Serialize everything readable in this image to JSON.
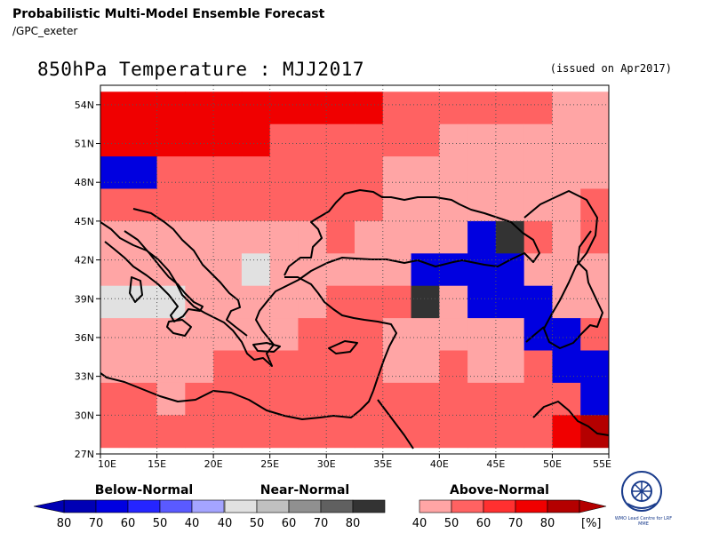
{
  "header": {
    "title": "Probabilistic Multi-Model Ensemble Forecast",
    "source": "/GPC_exeter"
  },
  "map": {
    "title": "850hPa Temperature : MJJ2017",
    "issued": "(issued on Apr2017)",
    "lat_labels": [
      "54N",
      "51N",
      "48N",
      "45N",
      "42N",
      "39N",
      "36N",
      "33N",
      "30N",
      "27N"
    ],
    "lon_labels": [
      "10E",
      "15E",
      "20E",
      "25E",
      "30E",
      "35E",
      "40E",
      "45E",
      "50E",
      "55E"
    ],
    "lon_range": [
      10,
      55
    ],
    "lat_range": [
      27,
      55.5
    ],
    "grid": true,
    "cell_deg": 2.5
  },
  "colors": {
    "above": [
      "#ffa5a5",
      "#ff6262",
      "#ff3030",
      "#f00000",
      "#b40000"
    ],
    "below": [
      "#a4a4ff",
      "#5a5aff",
      "#2525ff",
      "#0000e0",
      "#0000b4"
    ],
    "near": [
      "#e1e1e1",
      "#c0c0c0",
      "#909090",
      "#606060",
      "#333333"
    ]
  },
  "cells": [
    {
      "lon": 10,
      "lat": 52.5,
      "cat": "above",
      "lvl": 3
    },
    {
      "lon": 12.5,
      "lat": 52.5,
      "cat": "above",
      "lvl": 3
    },
    {
      "lon": 15,
      "lat": 52.5,
      "cat": "above",
      "lvl": 3
    },
    {
      "lon": 17.5,
      "lat": 52.5,
      "cat": "above",
      "lvl": 3
    },
    {
      "lon": 20,
      "lat": 52.5,
      "cat": "above",
      "lvl": 3
    },
    {
      "lon": 22.5,
      "lat": 52.5,
      "cat": "above",
      "lvl": 3
    },
    {
      "lon": 25,
      "lat": 52.5,
      "cat": "above",
      "lvl": 3
    },
    {
      "lon": 27.5,
      "lat": 52.5,
      "cat": "above",
      "lvl": 3
    },
    {
      "lon": 30,
      "lat": 52.5,
      "cat": "above",
      "lvl": 3
    },
    {
      "lon": 32.5,
      "lat": 52.5,
      "cat": "above",
      "lvl": 3
    },
    {
      "lon": 35,
      "lat": 52.5,
      "cat": "above",
      "lvl": 1
    },
    {
      "lon": 37.5,
      "lat": 52.5,
      "cat": "above",
      "lvl": 1
    },
    {
      "lon": 40,
      "lat": 52.5,
      "cat": "above",
      "lvl": 1
    },
    {
      "lon": 42.5,
      "lat": 52.5,
      "cat": "above",
      "lvl": 1
    },
    {
      "lon": 45,
      "lat": 52.5,
      "cat": "above",
      "lvl": 1
    },
    {
      "lon": 47.5,
      "lat": 52.5,
      "cat": "above",
      "lvl": 1
    },
    {
      "lon": 50,
      "lat": 52.5,
      "cat": "above",
      "lvl": 0
    },
    {
      "lon": 52.5,
      "lat": 52.5,
      "cat": "above",
      "lvl": 0
    },
    {
      "lon": 10,
      "lat": 50,
      "cat": "above",
      "lvl": 3
    },
    {
      "lon": 12.5,
      "lat": 50,
      "cat": "above",
      "lvl": 3
    },
    {
      "lon": 15,
      "lat": 50,
      "cat": "above",
      "lvl": 3
    },
    {
      "lon": 17.5,
      "lat": 50,
      "cat": "above",
      "lvl": 3
    },
    {
      "lon": 20,
      "lat": 50,
      "cat": "above",
      "lvl": 3
    },
    {
      "lon": 22.5,
      "lat": 50,
      "cat": "above",
      "lvl": 3
    },
    {
      "lon": 25,
      "lat": 50,
      "cat": "above",
      "lvl": 1
    },
    {
      "lon": 27.5,
      "lat": 50,
      "cat": "above",
      "lvl": 1
    },
    {
      "lon": 30,
      "lat": 50,
      "cat": "above",
      "lvl": 1
    },
    {
      "lon": 32.5,
      "lat": 50,
      "cat": "above",
      "lvl": 1
    },
    {
      "lon": 35,
      "lat": 50,
      "cat": "above",
      "lvl": 1
    },
    {
      "lon": 37.5,
      "lat": 50,
      "cat": "above",
      "lvl": 1
    },
    {
      "lon": 40,
      "lat": 50,
      "cat": "above",
      "lvl": 0
    },
    {
      "lon": 42.5,
      "lat": 50,
      "cat": "above",
      "lvl": 0
    },
    {
      "lon": 45,
      "lat": 50,
      "cat": "above",
      "lvl": 0
    },
    {
      "lon": 47.5,
      "lat": 50,
      "cat": "above",
      "lvl": 0
    },
    {
      "lon": 50,
      "lat": 50,
      "cat": "above",
      "lvl": 0
    },
    {
      "lon": 52.5,
      "lat": 50,
      "cat": "above",
      "lvl": 0
    },
    {
      "lon": 10,
      "lat": 47.5,
      "cat": "below",
      "lvl": 3
    },
    {
      "lon": 12.5,
      "lat": 47.5,
      "cat": "below",
      "lvl": 3
    },
    {
      "lon": 15,
      "lat": 47.5,
      "cat": "above",
      "lvl": 1
    },
    {
      "lon": 17.5,
      "lat": 47.5,
      "cat": "above",
      "lvl": 1
    },
    {
      "lon": 20,
      "lat": 47.5,
      "cat": "above",
      "lvl": 1
    },
    {
      "lon": 22.5,
      "lat": 47.5,
      "cat": "above",
      "lvl": 1
    },
    {
      "lon": 25,
      "lat": 47.5,
      "cat": "above",
      "lvl": 1
    },
    {
      "lon": 27.5,
      "lat": 47.5,
      "cat": "above",
      "lvl": 1
    },
    {
      "lon": 30,
      "lat": 47.5,
      "cat": "above",
      "lvl": 1
    },
    {
      "lon": 32.5,
      "lat": 47.5,
      "cat": "above",
      "lvl": 1
    },
    {
      "lon": 35,
      "lat": 47.5,
      "cat": "above",
      "lvl": 0
    },
    {
      "lon": 37.5,
      "lat": 47.5,
      "cat": "above",
      "lvl": 0
    },
    {
      "lon": 40,
      "lat": 47.5,
      "cat": "above",
      "lvl": 0
    },
    {
      "lon": 42.5,
      "lat": 47.5,
      "cat": "above",
      "lvl": 0
    },
    {
      "lon": 45,
      "lat": 47.5,
      "cat": "above",
      "lvl": 0
    },
    {
      "lon": 47.5,
      "lat": 47.5,
      "cat": "above",
      "lvl": 0
    },
    {
      "lon": 50,
      "lat": 47.5,
      "cat": "above",
      "lvl": 0
    },
    {
      "lon": 52.5,
      "lat": 47.5,
      "cat": "above",
      "lvl": 0
    },
    {
      "lon": 10,
      "lat": 45,
      "cat": "above",
      "lvl": 1
    },
    {
      "lon": 12.5,
      "lat": 45,
      "cat": "above",
      "lvl": 1
    },
    {
      "lon": 15,
      "lat": 45,
      "cat": "above",
      "lvl": 1
    },
    {
      "lon": 17.5,
      "lat": 45,
      "cat": "above",
      "lvl": 1
    },
    {
      "lon": 20,
      "lat": 45,
      "cat": "above",
      "lvl": 1
    },
    {
      "lon": 22.5,
      "lat": 45,
      "cat": "above",
      "lvl": 1
    },
    {
      "lon": 25,
      "lat": 45,
      "cat": "above",
      "lvl": 1
    },
    {
      "lon": 27.5,
      "lat": 45,
      "cat": "above",
      "lvl": 1
    },
    {
      "lon": 30,
      "lat": 45,
      "cat": "above",
      "lvl": 1
    },
    {
      "lon": 32.5,
      "lat": 45,
      "cat": "above",
      "lvl": 1
    },
    {
      "lon": 35,
      "lat": 45,
      "cat": "above",
      "lvl": 0
    },
    {
      "lon": 37.5,
      "lat": 45,
      "cat": "above",
      "lvl": 0
    },
    {
      "lon": 40,
      "lat": 45,
      "cat": "above",
      "lvl": 0
    },
    {
      "lon": 42.5,
      "lat": 45,
      "cat": "above",
      "lvl": 0
    },
    {
      "lon": 45,
      "lat": 45,
      "cat": "above",
      "lvl": 0
    },
    {
      "lon": 47.5,
      "lat": 45,
      "cat": "above",
      "lvl": 0
    },
    {
      "lon": 50,
      "lat": 45,
      "cat": "above",
      "lvl": 0
    },
    {
      "lon": 52.5,
      "lat": 45,
      "cat": "above",
      "lvl": 1
    },
    {
      "lon": 10,
      "lat": 42.5,
      "cat": "above",
      "lvl": 0
    },
    {
      "lon": 12.5,
      "lat": 42.5,
      "cat": "above",
      "lvl": 0
    },
    {
      "lon": 15,
      "lat": 42.5,
      "cat": "above",
      "lvl": 0
    },
    {
      "lon": 17.5,
      "lat": 42.5,
      "cat": "above",
      "lvl": 0
    },
    {
      "lon": 20,
      "lat": 42.5,
      "cat": "above",
      "lvl": 0
    },
    {
      "lon": 22.5,
      "lat": 42.5,
      "cat": "above",
      "lvl": 0
    },
    {
      "lon": 25,
      "lat": 42.5,
      "cat": "above",
      "lvl": 0
    },
    {
      "lon": 27.5,
      "lat": 42.5,
      "cat": "above",
      "lvl": 0
    },
    {
      "lon": 30,
      "lat": 42.5,
      "cat": "above",
      "lvl": 1
    },
    {
      "lon": 32.5,
      "lat": 42.5,
      "cat": "above",
      "lvl": 0
    },
    {
      "lon": 35,
      "lat": 42.5,
      "cat": "above",
      "lvl": 0
    },
    {
      "lon": 37.5,
      "lat": 42.5,
      "cat": "above",
      "lvl": 0
    },
    {
      "lon": 40,
      "lat": 42.5,
      "cat": "above",
      "lvl": 0
    },
    {
      "lon": 42.5,
      "lat": 42.5,
      "cat": "below",
      "lvl": 3
    },
    {
      "lon": 45,
      "lat": 42.5,
      "cat": "near",
      "lvl": 4
    },
    {
      "lon": 47.5,
      "lat": 42.5,
      "cat": "above",
      "lvl": 1
    },
    {
      "lon": 50,
      "lat": 42.5,
      "cat": "above",
      "lvl": 0
    },
    {
      "lon": 52.5,
      "lat": 42.5,
      "cat": "above",
      "lvl": 1
    },
    {
      "lon": 10,
      "lat": 40,
      "cat": "above",
      "lvl": 0
    },
    {
      "lon": 12.5,
      "lat": 40,
      "cat": "above",
      "lvl": 0
    },
    {
      "lon": 15,
      "lat": 40,
      "cat": "above",
      "lvl": 0
    },
    {
      "lon": 17.5,
      "lat": 40,
      "cat": "above",
      "lvl": 0
    },
    {
      "lon": 20,
      "lat": 40,
      "cat": "above",
      "lvl": 0
    },
    {
      "lon": 22.5,
      "lat": 40,
      "cat": "near",
      "lvl": 0
    },
    {
      "lon": 25,
      "lat": 40,
      "cat": "above",
      "lvl": 0
    },
    {
      "lon": 27.5,
      "lat": 40,
      "cat": "above",
      "lvl": 0
    },
    {
      "lon": 30,
      "lat": 40,
      "cat": "above",
      "lvl": 0
    },
    {
      "lon": 32.5,
      "lat": 40,
      "cat": "above",
      "lvl": 0
    },
    {
      "lon": 35,
      "lat": 40,
      "cat": "above",
      "lvl": 0
    },
    {
      "lon": 37.5,
      "lat": 40,
      "cat": "below",
      "lvl": 3
    },
    {
      "lon": 40,
      "lat": 40,
      "cat": "below",
      "lvl": 3
    },
    {
      "lon": 42.5,
      "lat": 40,
      "cat": "below",
      "lvl": 3
    },
    {
      "lon": 45,
      "lat": 40,
      "cat": "below",
      "lvl": 3
    },
    {
      "lon": 47.5,
      "lat": 40,
      "cat": "above",
      "lvl": 0
    },
    {
      "lon": 50,
      "lat": 40,
      "cat": "above",
      "lvl": 0
    },
    {
      "lon": 52.5,
      "lat": 40,
      "cat": "above",
      "lvl": 0
    },
    {
      "lon": 10,
      "lat": 37.5,
      "cat": "near",
      "lvl": 0
    },
    {
      "lon": 12.5,
      "lat": 37.5,
      "cat": "near",
      "lvl": 0
    },
    {
      "lon": 15,
      "lat": 37.5,
      "cat": "near",
      "lvl": 0
    },
    {
      "lon": 17.5,
      "lat": 37.5,
      "cat": "above",
      "lvl": 0
    },
    {
      "lon": 20,
      "lat": 37.5,
      "cat": "above",
      "lvl": 0
    },
    {
      "lon": 22.5,
      "lat": 37.5,
      "cat": "above",
      "lvl": 0
    },
    {
      "lon": 25,
      "lat": 37.5,
      "cat": "above",
      "lvl": 0
    },
    {
      "lon": 27.5,
      "lat": 37.5,
      "cat": "above",
      "lvl": 0
    },
    {
      "lon": 30,
      "lat": 37.5,
      "cat": "above",
      "lvl": 1
    },
    {
      "lon": 32.5,
      "lat": 37.5,
      "cat": "above",
      "lvl": 1
    },
    {
      "lon": 35,
      "lat": 37.5,
      "cat": "above",
      "lvl": 1
    },
    {
      "lon": 37.5,
      "lat": 37.5,
      "cat": "near",
      "lvl": 4
    },
    {
      "lon": 40,
      "lat": 37.5,
      "cat": "above",
      "lvl": 0
    },
    {
      "lon": 42.5,
      "lat": 37.5,
      "cat": "below",
      "lvl": 3
    },
    {
      "lon": 45,
      "lat": 37.5,
      "cat": "below",
      "lvl": 3
    },
    {
      "lon": 47.5,
      "lat": 37.5,
      "cat": "below",
      "lvl": 3
    },
    {
      "lon": 50,
      "lat": 37.5,
      "cat": "above",
      "lvl": 0
    },
    {
      "lon": 52.5,
      "lat": 37.5,
      "cat": "above",
      "lvl": 0
    },
    {
      "lon": 10,
      "lat": 35,
      "cat": "above",
      "lvl": 0
    },
    {
      "lon": 12.5,
      "lat": 35,
      "cat": "above",
      "lvl": 0
    },
    {
      "lon": 15,
      "lat": 35,
      "cat": "above",
      "lvl": 0
    },
    {
      "lon": 17.5,
      "lat": 35,
      "cat": "above",
      "lvl": 0
    },
    {
      "lon": 20,
      "lat": 35,
      "cat": "above",
      "lvl": 0
    },
    {
      "lon": 22.5,
      "lat": 35,
      "cat": "above",
      "lvl": 0
    },
    {
      "lon": 25,
      "lat": 35,
      "cat": "above",
      "lvl": 0
    },
    {
      "lon": 27.5,
      "lat": 35,
      "cat": "above",
      "lvl": 1
    },
    {
      "lon": 30,
      "lat": 35,
      "cat": "above",
      "lvl": 1
    },
    {
      "lon": 32.5,
      "lat": 35,
      "cat": "above",
      "lvl": 1
    },
    {
      "lon": 35,
      "lat": 35,
      "cat": "above",
      "lvl": 0
    },
    {
      "lon": 37.5,
      "lat": 35,
      "cat": "above",
      "lvl": 0
    },
    {
      "lon": 40,
      "lat": 35,
      "cat": "above",
      "lvl": 0
    },
    {
      "lon": 42.5,
      "lat": 35,
      "cat": "above",
      "lvl": 0
    },
    {
      "lon": 45,
      "lat": 35,
      "cat": "above",
      "lvl": 0
    },
    {
      "lon": 47.5,
      "lat": 35,
      "cat": "below",
      "lvl": 3
    },
    {
      "lon": 50,
      "lat": 35,
      "cat": "below",
      "lvl": 3
    },
    {
      "lon": 52.5,
      "lat": 35,
      "cat": "above",
      "lvl": 1
    },
    {
      "lon": 10,
      "lat": 32.5,
      "cat": "above",
      "lvl": 0
    },
    {
      "lon": 12.5,
      "lat": 32.5,
      "cat": "above",
      "lvl": 0
    },
    {
      "lon": 15,
      "lat": 32.5,
      "cat": "above",
      "lvl": 0
    },
    {
      "lon": 17.5,
      "lat": 32.5,
      "cat": "above",
      "lvl": 0
    },
    {
      "lon": 20,
      "lat": 32.5,
      "cat": "above",
      "lvl": 1
    },
    {
      "lon": 22.5,
      "lat": 32.5,
      "cat": "above",
      "lvl": 1
    },
    {
      "lon": 25,
      "lat": 32.5,
      "cat": "above",
      "lvl": 1
    },
    {
      "lon": 27.5,
      "lat": 32.5,
      "cat": "above",
      "lvl": 1
    },
    {
      "lon": 30,
      "lat": 32.5,
      "cat": "above",
      "lvl": 1
    },
    {
      "lon": 32.5,
      "lat": 32.5,
      "cat": "above",
      "lvl": 1
    },
    {
      "lon": 35,
      "lat": 32.5,
      "cat": "above",
      "lvl": 0
    },
    {
      "lon": 37.5,
      "lat": 32.5,
      "cat": "above",
      "lvl": 0
    },
    {
      "lon": 40,
      "lat": 32.5,
      "cat": "above",
      "lvl": 1
    },
    {
      "lon": 42.5,
      "lat": 32.5,
      "cat": "above",
      "lvl": 0
    },
    {
      "lon": 45,
      "lat": 32.5,
      "cat": "above",
      "lvl": 0
    },
    {
      "lon": 47.5,
      "lat": 32.5,
      "cat": "above",
      "lvl": 1
    },
    {
      "lon": 50,
      "lat": 32.5,
      "cat": "below",
      "lvl": 3
    },
    {
      "lon": 52.5,
      "lat": 32.5,
      "cat": "below",
      "lvl": 3
    },
    {
      "lon": 10,
      "lat": 30,
      "cat": "above",
      "lvl": 1
    },
    {
      "lon": 12.5,
      "lat": 30,
      "cat": "above",
      "lvl": 1
    },
    {
      "lon": 15,
      "lat": 30,
      "cat": "above",
      "lvl": 0
    },
    {
      "lon": 17.5,
      "lat": 30,
      "cat": "above",
      "lvl": 1
    },
    {
      "lon": 20,
      "lat": 30,
      "cat": "above",
      "lvl": 1
    },
    {
      "lon": 22.5,
      "lat": 30,
      "cat": "above",
      "lvl": 1
    },
    {
      "lon": 25,
      "lat": 30,
      "cat": "above",
      "lvl": 1
    },
    {
      "lon": 27.5,
      "lat": 30,
      "cat": "above",
      "lvl": 1
    },
    {
      "lon": 30,
      "lat": 30,
      "cat": "above",
      "lvl": 1
    },
    {
      "lon": 32.5,
      "lat": 30,
      "cat": "above",
      "lvl": 1
    },
    {
      "lon": 35,
      "lat": 30,
      "cat": "above",
      "lvl": 1
    },
    {
      "lon": 37.5,
      "lat": 30,
      "cat": "above",
      "lvl": 1
    },
    {
      "lon": 40,
      "lat": 30,
      "cat": "above",
      "lvl": 1
    },
    {
      "lon": 42.5,
      "lat": 30,
      "cat": "above",
      "lvl": 1
    },
    {
      "lon": 45,
      "lat": 30,
      "cat": "above",
      "lvl": 1
    },
    {
      "lon": 47.5,
      "lat": 30,
      "cat": "above",
      "lvl": 1
    },
    {
      "lon": 50,
      "lat": 30,
      "cat": "above",
      "lvl": 1
    },
    {
      "lon": 52.5,
      "lat": 30,
      "cat": "below",
      "lvl": 3
    },
    {
      "lon": 10,
      "lat": 27.5,
      "cat": "above",
      "lvl": 1
    },
    {
      "lon": 12.5,
      "lat": 27.5,
      "cat": "above",
      "lvl": 1
    },
    {
      "lon": 15,
      "lat": 27.5,
      "cat": "above",
      "lvl": 1
    },
    {
      "lon": 17.5,
      "lat": 27.5,
      "cat": "above",
      "lvl": 1
    },
    {
      "lon": 20,
      "lat": 27.5,
      "cat": "above",
      "lvl": 1
    },
    {
      "lon": 22.5,
      "lat": 27.5,
      "cat": "above",
      "lvl": 1
    },
    {
      "lon": 25,
      "lat": 27.5,
      "cat": "above",
      "lvl": 1
    },
    {
      "lon": 27.5,
      "lat": 27.5,
      "cat": "above",
      "lvl": 1
    },
    {
      "lon": 30,
      "lat": 27.5,
      "cat": "above",
      "lvl": 1
    },
    {
      "lon": 32.5,
      "lat": 27.5,
      "cat": "above",
      "lvl": 1
    },
    {
      "lon": 35,
      "lat": 27.5,
      "cat": "above",
      "lvl": 1
    },
    {
      "lon": 37.5,
      "lat": 27.5,
      "cat": "above",
      "lvl": 1
    },
    {
      "lon": 40,
      "lat": 27.5,
      "cat": "above",
      "lvl": 1
    },
    {
      "lon": 42.5,
      "lat": 27.5,
      "cat": "above",
      "lvl": 1
    },
    {
      "lon": 45,
      "lat": 27.5,
      "cat": "above",
      "lvl": 1
    },
    {
      "lon": 47.5,
      "lat": 27.5,
      "cat": "above",
      "lvl": 1
    },
    {
      "lon": 50,
      "lat": 27.5,
      "cat": "above",
      "lvl": 3
    },
    {
      "lon": 52.5,
      "lat": 27.5,
      "cat": "above",
      "lvl": 4
    }
  ],
  "legend": {
    "below": {
      "label": "Below-Normal",
      "ticks": [
        "80",
        "70",
        "60",
        "50",
        "40"
      ]
    },
    "near": {
      "label": "Near-Normal",
      "ticks": [
        "40",
        "50",
        "60",
        "70",
        "80"
      ]
    },
    "above": {
      "label": "Above-Normal",
      "ticks": [
        "40",
        "50",
        "60",
        "70",
        "80"
      ],
      "unit": "[%]"
    }
  },
  "logo": {
    "text": "WMO Lead Centre for LRF MME"
  }
}
